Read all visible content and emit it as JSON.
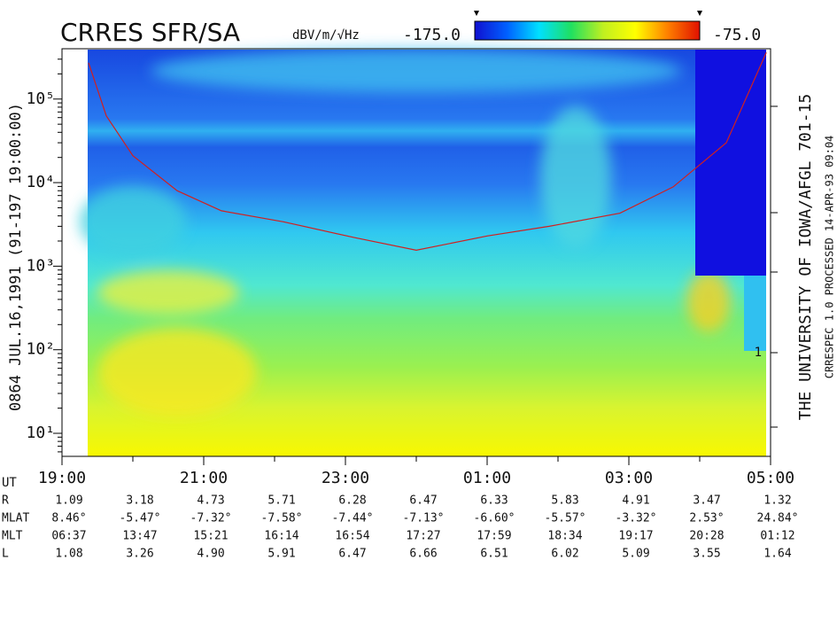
{
  "chart_data": {
    "type": "spectrogram",
    "title": "CRRES SFR/SA",
    "colorbar": {
      "units": "dBV/m/√Hz",
      "min_label": "-175.0",
      "max_label": "-75.0",
      "range": [
        -175,
        -75
      ],
      "colors": [
        "#1010d0",
        "#0060ff",
        "#00e0ff",
        "#20e060",
        "#c0f020",
        "#ffff00",
        "#ff8000",
        "#e01000"
      ]
    },
    "left_label": "0864   JUL.16,1991   (91-197 19:00:00)",
    "right_label": "THE UNIVERSITY OF IOWA/AFGL 701-15",
    "right_sublabel": "CRRESPEC 1.0   PROCESSED 14-APR-93  09:04",
    "right_axis_label": "1",
    "log_y": true,
    "ylim": [
      5.3,
      400000
    ],
    "yticks": [
      {
        "value": 10,
        "label": "10¹"
      },
      {
        "value": 100,
        "label": "10²"
      },
      {
        "value": 1000,
        "label": "10³"
      },
      {
        "value": 10000,
        "label": "10⁴"
      },
      {
        "value": 100000,
        "label": "10⁵"
      }
    ],
    "xlim": [
      19,
      29
    ],
    "xticks": [
      {
        "value": 19,
        "label": "19:00"
      },
      {
        "value": 21,
        "label": "21:00"
      },
      {
        "value": 23,
        "label": "23:00"
      },
      {
        "value": 25,
        "label": "01:00"
      },
      {
        "value": 27,
        "label": "03:00"
      },
      {
        "value": 29,
        "label": "05:00"
      }
    ],
    "xminor_ticks": [
      20,
      22,
      24,
      26,
      28
    ],
    "series": [
      {
        "color": "#d02020",
        "x": [
          19.375,
          19.625,
          20.0,
          20.625,
          21.25,
          22.125,
          23.125,
          24.0,
          25.0,
          25.875,
          26.875,
          27.625,
          28.375,
          28.94
        ],
        "values": [
          272000,
          63000,
          21000,
          8000,
          4600,
          3400,
          2200,
          1550,
          2300,
          3000,
          4300,
          8900,
          30000,
          360000
        ]
      }
    ],
    "ephemeris": {
      "ut_label": "UT",
      "rows": [
        {
          "label": "R",
          "values": [
            "1.09",
            "3.18",
            "4.73",
            "5.71",
            "6.28",
            "6.47",
            "6.33",
            "5.83",
            "4.91",
            "3.47",
            "1.32"
          ]
        },
        {
          "label": "MLAT",
          "values": [
            "8.46°",
            "-5.47°",
            "-7.32°",
            "-7.58°",
            "-7.44°",
            "-7.13°",
            "-6.60°",
            "-5.57°",
            "-3.32°",
            "2.53°",
            "24.84°"
          ]
        },
        {
          "label": "MLT",
          "values": [
            "06:37",
            "13:47",
            "15:21",
            "16:14",
            "16:54",
            "17:27",
            "17:59",
            "18:34",
            "19:17",
            "20:28",
            "01:12"
          ]
        },
        {
          "label": "L",
          "values": [
            "1.08",
            "3.26",
            "4.90",
            "5.91",
            "6.47",
            "6.66",
            "6.51",
            "6.02",
            "5.09",
            "3.55",
            "1.64"
          ]
        }
      ]
    }
  }
}
